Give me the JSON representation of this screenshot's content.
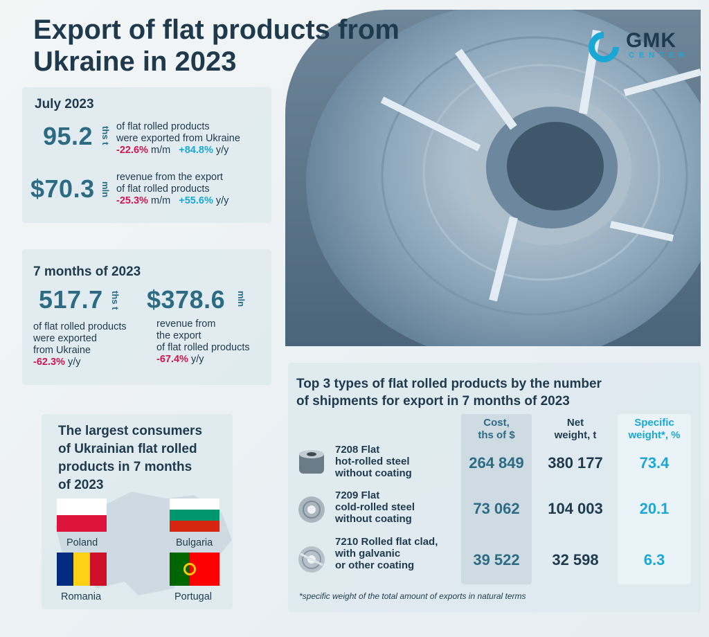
{
  "title": "Export of flat products from Ukraine in 2023",
  "logo": {
    "main": "GMK",
    "sub": "CENTER"
  },
  "july": {
    "heading": "July 2023",
    "volume": {
      "value": "95.2",
      "unit": "ths t",
      "text_line1": "of flat rolled products",
      "text_line2": "were exported from Ukraine",
      "mm": "-22.6%",
      "mm_label": "m/m",
      "yy": "+84.8%",
      "yy_label": "y/y"
    },
    "revenue": {
      "value": "$70.3",
      "unit": "mln",
      "text_line1": "revenue from the export",
      "text_line2": "of flat rolled products",
      "mm": "-25.3%",
      "mm_label": "m/m",
      "yy": "+55.6%",
      "yy_label": "y/y"
    }
  },
  "seven_months": {
    "heading": "7 months of 2023",
    "volume": {
      "value": "517.7",
      "unit": "ths t",
      "text_line1": "of flat rolled products",
      "text_line2": "were exported",
      "text_line3": "from Ukraine",
      "yy": "-62.3%",
      "yy_label": "y/y"
    },
    "revenue": {
      "value": "$378.6",
      "unit": "mln",
      "text_line1": "revenue from",
      "text_line2": "the export",
      "text_line3": "of flat rolled products",
      "yy": "-67.4%",
      "yy_label": "y/y"
    }
  },
  "consumers": {
    "heading_line1": "The largest consumers",
    "heading_line2": "of Ukrainian flat rolled",
    "heading_line3": "products in 7 months",
    "heading_line4": "of 2023",
    "countries": [
      "Poland",
      "Bulgaria",
      "Romania",
      "Portugal"
    ]
  },
  "top3": {
    "heading_line1": "Top 3 types of flat rolled products by the number",
    "heading_line2": "of shipments for export in 7 months of 2023",
    "col_cost_line1": "Cost,",
    "col_cost_line2": "ths of $",
    "col_weight_line1": "Net",
    "col_weight_line2": "weight, t",
    "col_spec_line1": "Specific",
    "col_spec_line2": "weight*, %",
    "rows": [
      {
        "line1": "7208 Flat",
        "line2": "hot-rolled steel",
        "line3": "without coating",
        "cost": "264 849",
        "weight": "380 177",
        "spec": "73.4"
      },
      {
        "line1": "7209 Flat",
        "line2": "cold-rolled steel",
        "line3": "without coating",
        "cost": "73 062",
        "weight": "104 003",
        "spec": "20.1"
      },
      {
        "line1": "7210 Rolled flat clad,",
        "line2": "with galvanic",
        "line3": "or other coating",
        "cost": "39 522",
        "weight": "32 598",
        "spec": "6.3"
      }
    ],
    "footnote": "*specific weight of the total amount of exports in natural terms"
  },
  "colors": {
    "dark": "#1f3a4d",
    "teal": "#2d6b84",
    "accent": "#19a8d6",
    "negative": "#d0154f"
  }
}
